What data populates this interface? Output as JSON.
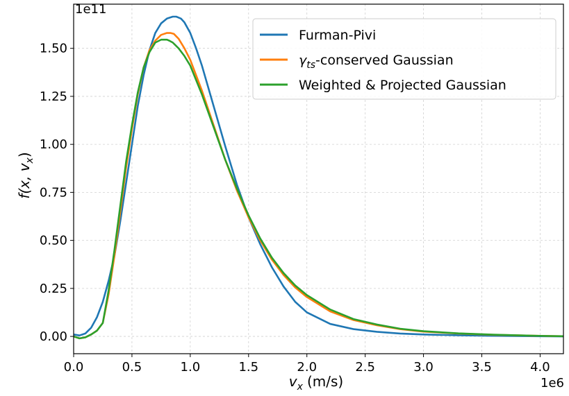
{
  "chart_data": {
    "type": "line",
    "title": "",
    "xlabel": "v",
    "xlabel_sub": "x",
    "xlabel_unit": "(m/s)",
    "ylabel": "f(x, v",
    "ylabel_sub": "x",
    "ylabel_close": ")",
    "x_multiplier": "1e6",
    "y_multiplier": "1e11",
    "xlim": [
      0.0,
      4.2
    ],
    "ylim": [
      -0.09,
      1.73
    ],
    "xticks": [
      0.0,
      0.5,
      1.0,
      1.5,
      2.0,
      2.5,
      3.0,
      3.5,
      4.0
    ],
    "xtick_labels": [
      "0.0",
      "0.5",
      "1.0",
      "1.5",
      "2.0",
      "2.5",
      "3.0",
      "3.5",
      "4.0"
    ],
    "yticks": [
      0.0,
      0.25,
      0.5,
      0.75,
      1.0,
      1.25,
      1.5
    ],
    "ytick_labels": [
      "0.00",
      "0.25",
      "0.50",
      "0.75",
      "1.00",
      "1.25",
      "1.50"
    ],
    "grid": true,
    "legend_position": "top-right",
    "series": [
      {
        "name": "Furman-Pivi",
        "legend_label": "Furman-Pivi",
        "color": "#1f77b4",
        "x": [
          0.0,
          0.05,
          0.1,
          0.15,
          0.2,
          0.25,
          0.3,
          0.35,
          0.4,
          0.45,
          0.5,
          0.55,
          0.6,
          0.65,
          0.7,
          0.75,
          0.8,
          0.85,
          0.88,
          0.92,
          0.95,
          1.0,
          1.05,
          1.1,
          1.2,
          1.3,
          1.4,
          1.5,
          1.6,
          1.7,
          1.8,
          1.9,
          2.0,
          2.2,
          2.4,
          2.6,
          2.8,
          3.0,
          3.3,
          3.6,
          4.0,
          4.2
        ],
        "y": [
          0.01,
          0.005,
          0.015,
          0.045,
          0.1,
          0.18,
          0.29,
          0.42,
          0.6,
          0.8,
          1.0,
          1.2,
          1.36,
          1.49,
          1.58,
          1.63,
          1.655,
          1.665,
          1.665,
          1.655,
          1.635,
          1.58,
          1.5,
          1.41,
          1.2,
          0.99,
          0.79,
          0.62,
          0.48,
          0.36,
          0.26,
          0.18,
          0.125,
          0.065,
          0.038,
          0.024,
          0.015,
          0.01,
          0.006,
          0.003,
          0.001,
          0.0
        ]
      },
      {
        "name": "gamma_ts-conserved Gaussian",
        "legend_symbol": "γ",
        "legend_sub": "ts",
        "legend_label": "-conserved Gaussian",
        "color": "#ff7f0e",
        "x": [
          0.0,
          0.05,
          0.1,
          0.15,
          0.2,
          0.25,
          0.3,
          0.35,
          0.4,
          0.45,
          0.5,
          0.55,
          0.6,
          0.65,
          0.7,
          0.75,
          0.8,
          0.83,
          0.86,
          0.9,
          0.95,
          1.0,
          1.1,
          1.2,
          1.3,
          1.4,
          1.5,
          1.6,
          1.7,
          1.8,
          1.9,
          2.0,
          2.2,
          2.4,
          2.6,
          2.8,
          3.0,
          3.3,
          3.6,
          4.0,
          4.2
        ],
        "y": [
          0.0,
          -0.01,
          -0.005,
          0.01,
          0.03,
          0.07,
          0.22,
          0.42,
          0.65,
          0.88,
          1.08,
          1.26,
          1.4,
          1.49,
          1.54,
          1.57,
          1.58,
          1.58,
          1.575,
          1.55,
          1.5,
          1.44,
          1.28,
          1.1,
          0.92,
          0.76,
          0.62,
          0.5,
          0.4,
          0.32,
          0.255,
          0.205,
          0.13,
          0.085,
          0.058,
          0.038,
          0.025,
          0.015,
          0.008,
          0.003,
          0.001
        ]
      },
      {
        "name": "Weighted & Projected Gaussian",
        "legend_label": "Weighted & Projected Gaussian",
        "color": "#2ca02c",
        "x": [
          0.0,
          0.05,
          0.1,
          0.15,
          0.2,
          0.25,
          0.3,
          0.35,
          0.4,
          0.45,
          0.5,
          0.55,
          0.6,
          0.65,
          0.7,
          0.75,
          0.8,
          0.82,
          0.85,
          0.9,
          0.95,
          1.0,
          1.1,
          1.2,
          1.3,
          1.4,
          1.5,
          1.6,
          1.7,
          1.8,
          1.9,
          2.0,
          2.2,
          2.4,
          2.6,
          2.8,
          3.0,
          3.3,
          3.6,
          4.0,
          4.2
        ],
        "y": [
          0.0,
          -0.01,
          -0.005,
          0.01,
          0.03,
          0.07,
          0.24,
          0.45,
          0.68,
          0.91,
          1.1,
          1.27,
          1.4,
          1.48,
          1.53,
          1.545,
          1.545,
          1.54,
          1.53,
          1.5,
          1.46,
          1.41,
          1.26,
          1.09,
          0.92,
          0.77,
          0.63,
          0.51,
          0.41,
          0.33,
          0.265,
          0.215,
          0.14,
          0.09,
          0.062,
          0.04,
          0.027,
          0.016,
          0.009,
          0.003,
          0.001
        ]
      }
    ]
  }
}
